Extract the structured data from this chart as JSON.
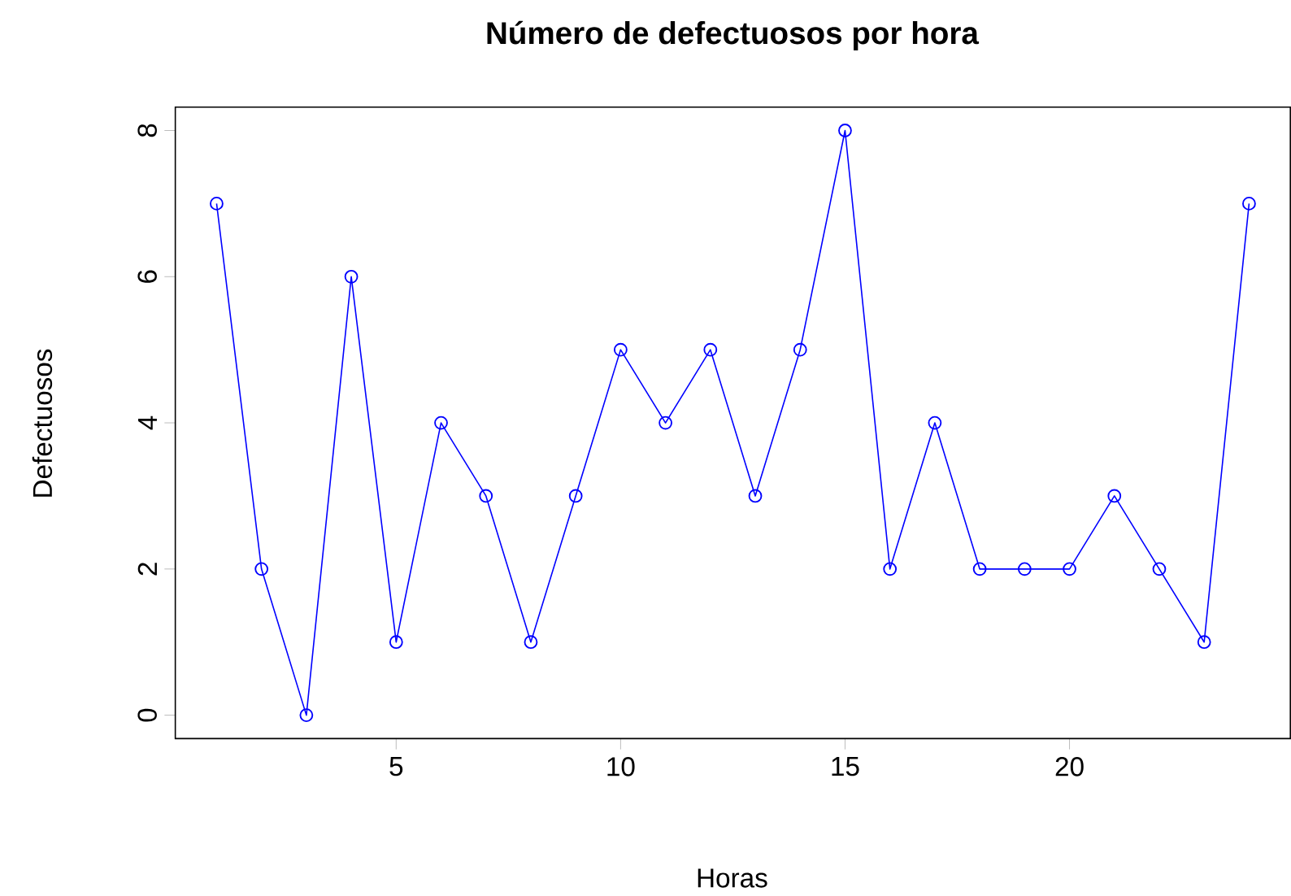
{
  "chart_data": {
    "type": "line",
    "title": "Número de defectuosos por hora",
    "xlabel": "Horas",
    "ylabel": "Defectuosos",
    "x": [
      1,
      2,
      3,
      4,
      5,
      6,
      7,
      8,
      9,
      10,
      11,
      12,
      13,
      14,
      15,
      16,
      17,
      18,
      19,
      20,
      21,
      22,
      23,
      24
    ],
    "values": [
      7,
      2,
      0,
      6,
      1,
      4,
      3,
      1,
      3,
      5,
      4,
      5,
      3,
      5,
      8,
      2,
      4,
      2,
      2,
      2,
      3,
      2,
      1,
      7
    ],
    "color": "#0000ff",
    "marker": "circle",
    "line_style": "solid",
    "xlim": [
      0.08,
      24.92
    ],
    "ylim": [
      -0.32,
      8.32
    ],
    "xticks": [
      5,
      10,
      15,
      20
    ],
    "yticks": [
      0,
      2,
      4,
      6,
      8
    ]
  }
}
